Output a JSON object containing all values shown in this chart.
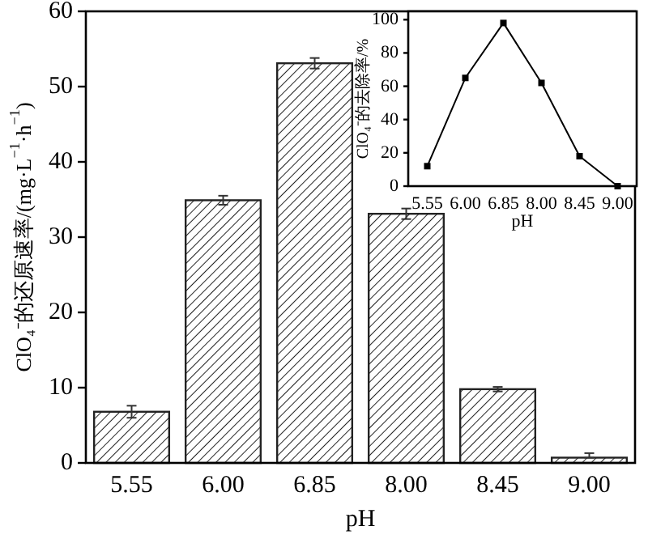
{
  "chart_data": [
    {
      "type": "bar",
      "xlabel": "pH",
      "ylabel": "ClO₄⁻的还原速率/(mg·L$^{−1}$·h$^{−1}$)",
      "categories": [
        "5.55",
        "6.00",
        "6.85",
        "8.00",
        "8.45",
        "9.00"
      ],
      "values": [
        6.8,
        34.9,
        53.1,
        33.1,
        9.8,
        0.7
      ],
      "errors": [
        0.8,
        0.6,
        0.7,
        0.7,
        0.3,
        [
          0.7,
          1.3
        ]
      ],
      "color": "#222222",
      "ylim": [
        0,
        60
      ],
      "yticks": [
        0,
        10,
        20,
        30,
        40,
        50,
        60
      ],
      "grid": false
    },
    {
      "type": "line",
      "xlabel": "pH",
      "ylabel": "ClO₄⁻的去除率/%",
      "categories": [
        "5.55",
        "6.00",
        "6.85",
        "8.00",
        "8.45",
        "9.00"
      ],
      "values": [
        12,
        65,
        98,
        62,
        18,
        0
      ],
      "color": "#000000",
      "marker": "square",
      "line_style": "solid",
      "ylim": [
        0,
        105
      ],
      "yticks": [
        0,
        20,
        40,
        60,
        80,
        100
      ],
      "grid": false
    }
  ]
}
